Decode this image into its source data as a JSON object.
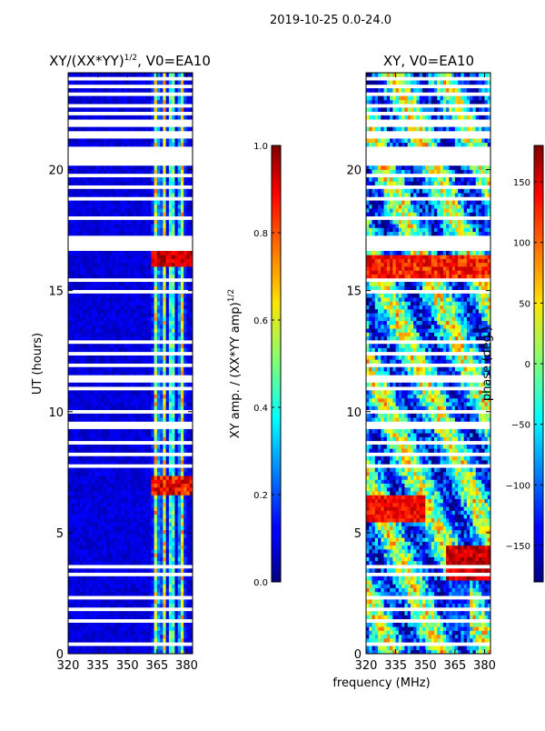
{
  "chart_data": {
    "suptitle": "2019-10-25 0.0-24.0",
    "shared_xlabel": "frequency (MHz)",
    "panels": [
      {
        "type": "heatmap",
        "title_main": "XY/(XX*YY)",
        "title_exp": "1/2",
        "title_suffix": ", V0=EA10",
        "ylabel": "UT (hours)",
        "xlim": [
          320,
          383
        ],
        "ylim": [
          0,
          24
        ],
        "xticks": [
          320,
          335,
          350,
          365,
          380
        ],
        "yticks": [
          0,
          5,
          10,
          15,
          20
        ],
        "colormap": "jet",
        "colorbar": {
          "label_main": "XY amp. / (XX*YY amp)",
          "label_exp": "1/2",
          "range": [
            0.0,
            1.0
          ],
          "ticks": [
            0.0,
            0.2,
            0.4,
            0.6,
            0.8,
            1.0
          ],
          "tick_labels": [
            "0.0",
            "0.2",
            "0.4",
            "0.6",
            "0.8",
            "1.0"
          ]
        }
      },
      {
        "type": "heatmap",
        "title_main": "XY, V0=EA10",
        "ylabel": "",
        "xlim": [
          320,
          383
        ],
        "ylim": [
          0,
          24
        ],
        "xticks": [
          320,
          335,
          350,
          365,
          380
        ],
        "yticks": [
          0,
          5,
          10,
          15,
          20
        ],
        "colormap": "jet",
        "colorbar": {
          "label_main": "phase (deg.)",
          "range": [
            -180,
            180
          ],
          "ticks": [
            -150,
            -100,
            -50,
            0,
            50,
            100,
            150
          ],
          "tick_labels": [
            "−150",
            "−100",
            "−50",
            "0",
            "50",
            "100",
            "150"
          ]
        }
      }
    ],
    "flagged_gaps_hours": [
      [
        0.35,
        0.45
      ],
      [
        0.9,
        1.0
      ],
      [
        1.35,
        1.45
      ],
      [
        1.75,
        1.85
      ],
      [
        2.3,
        2.45
      ],
      [
        3.25,
        3.4
      ],
      [
        3.55,
        3.7
      ],
      [
        4.45,
        4.55
      ],
      [
        5.4,
        5.5
      ],
      [
        7.7,
        7.85
      ],
      [
        8.2,
        8.35
      ],
      [
        8.7,
        8.85
      ],
      [
        9.35,
        9.6
      ],
      [
        9.9,
        10.0
      ],
      [
        10.9,
        11.0
      ],
      [
        11.25,
        11.45
      ],
      [
        11.9,
        12.0
      ],
      [
        12.35,
        12.55
      ],
      [
        12.85,
        13.0
      ],
      [
        14.9,
        15.05
      ],
      [
        15.35,
        15.5
      ],
      [
        16.7,
        17.3
      ],
      [
        17.55,
        17.65
      ],
      [
        17.95,
        18.05
      ],
      [
        18.35,
        18.45
      ],
      [
        18.8,
        18.9
      ],
      [
        19.25,
        19.35
      ],
      [
        19.7,
        19.8
      ],
      [
        20.15,
        21.0
      ],
      [
        21.25,
        21.55
      ],
      [
        21.75,
        22.0
      ],
      [
        22.25,
        22.4
      ],
      [
        22.6,
        22.7
      ],
      [
        23.05,
        23.15
      ],
      [
        23.35,
        23.5
      ],
      [
        23.7,
        23.8
      ]
    ]
  }
}
